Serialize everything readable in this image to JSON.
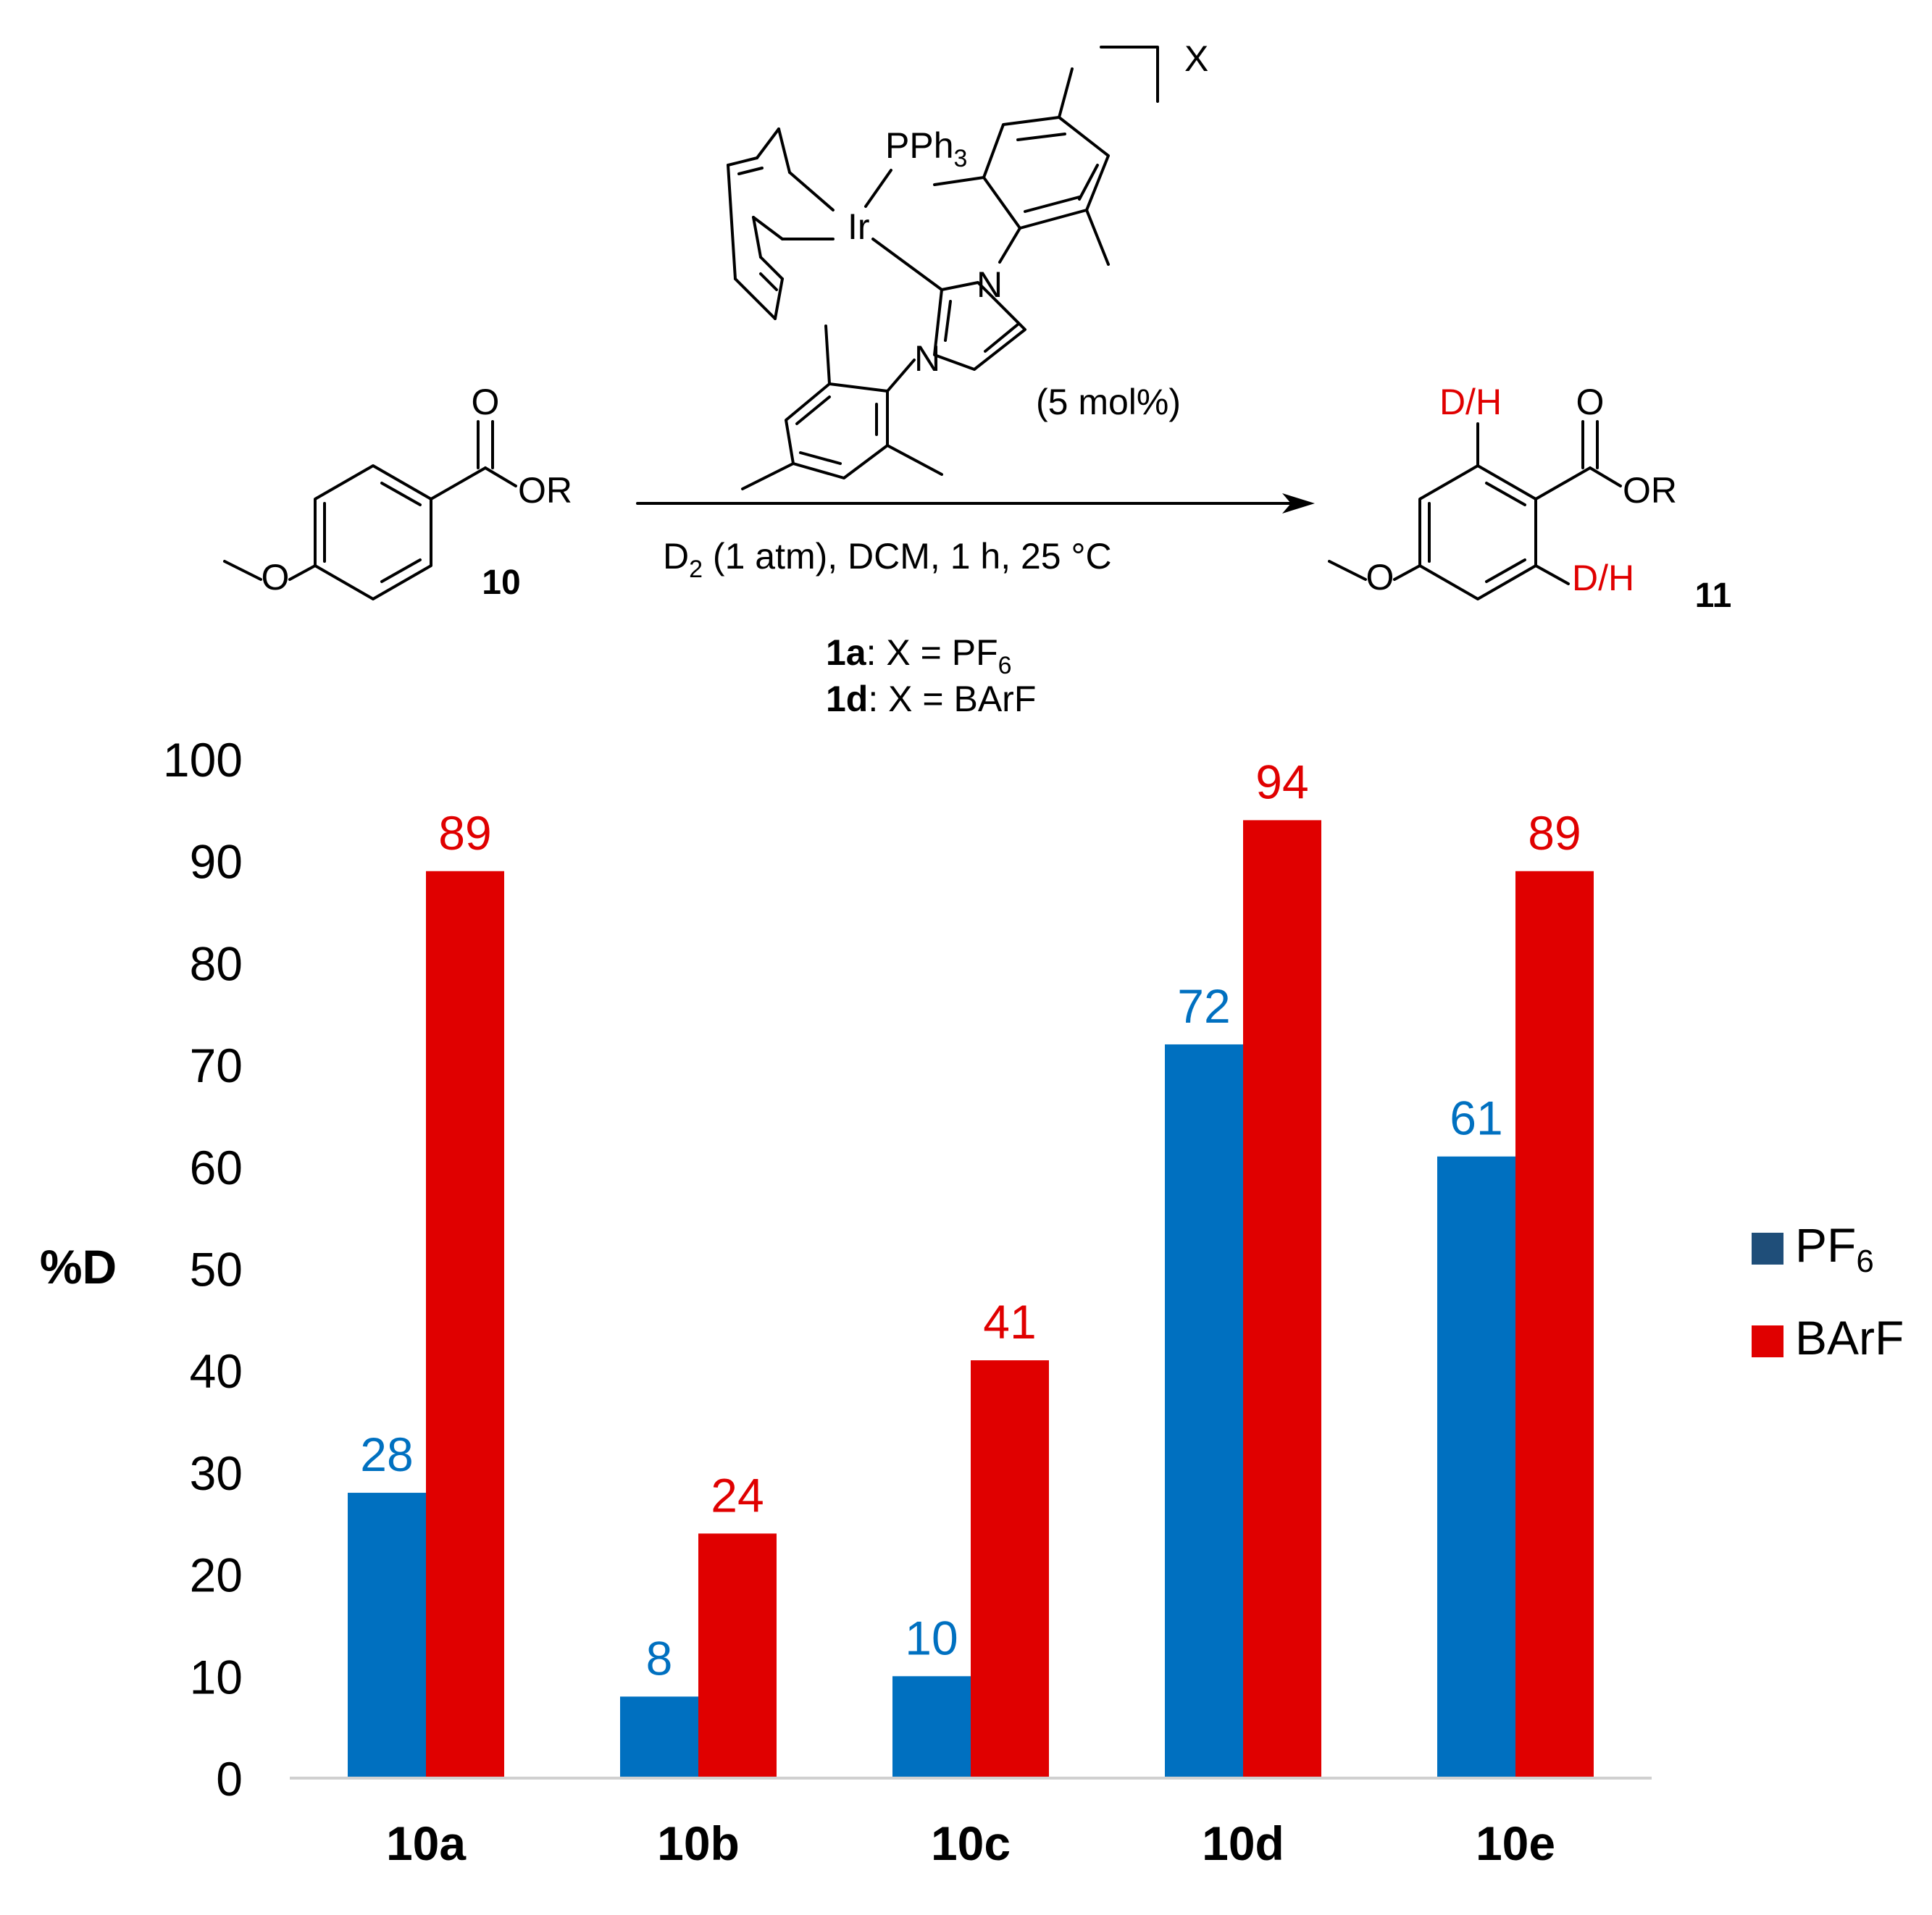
{
  "scheme": {
    "reactant_substituent": "OR",
    "reactant_carbonyl": "O",
    "reactant_label": "10",
    "product_substituent": "OR",
    "product_carbonyl": "O",
    "product_label": "11",
    "dh_top": "D/H",
    "dh_bottom": "D/H",
    "catalyst_metal": "Ir",
    "catalyst_ligand": "PPh",
    "catalyst_ligand_sub": "3",
    "counterion": "X",
    "nitrogen_top": "N",
    "nitrogen_bottom": "N",
    "loading": "(5 mol%)",
    "cond_pre": "D",
    "cond_sub": "2",
    "cond_post": " (1 atm), DCM, 1 h, 25 °C",
    "cat_a_id": "1a",
    "cat_a_text": ": X = PF",
    "cat_a_sub": "6",
    "cat_d_id": "1d",
    "cat_d_text": ": X = BArF"
  },
  "chart_data": {
    "type": "bar",
    "title": "",
    "xlabel": "",
    "ylabel": "%D",
    "ylim": [
      0,
      100
    ],
    "yticks": [
      0,
      10,
      20,
      30,
      40,
      50,
      60,
      70,
      80,
      90,
      100
    ],
    "categories": [
      "10a",
      "10b",
      "10c",
      "10d",
      "10e"
    ],
    "series": [
      {
        "name": "PF6",
        "label_main": "PF",
        "label_sub": "6",
        "color": "#0070c0",
        "values": [
          28,
          8,
          10,
          72,
          61
        ]
      },
      {
        "name": "BArF",
        "label_main": "BArF",
        "label_sub": "",
        "color": "#e00000",
        "values": [
          89,
          24,
          41,
          94,
          89
        ]
      }
    ],
    "legend_position": "right",
    "grid": false
  }
}
